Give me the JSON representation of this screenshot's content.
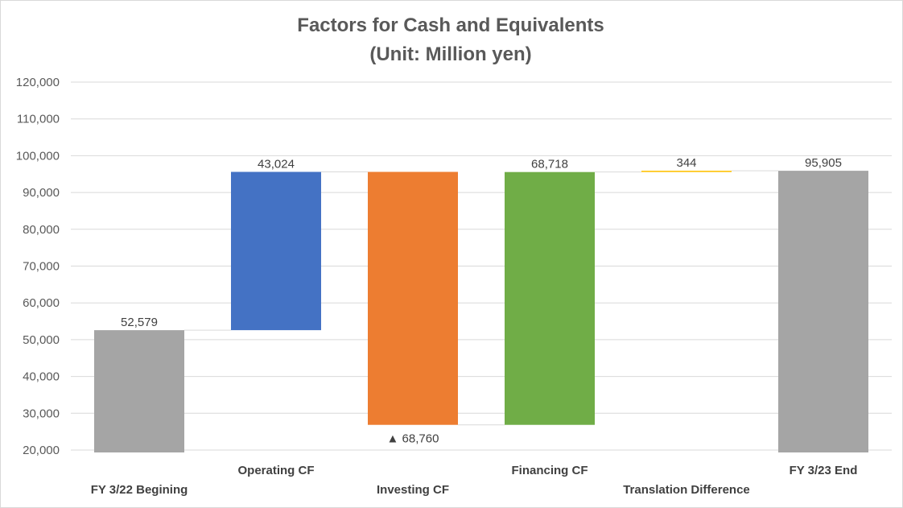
{
  "chart_data": {
    "type": "bar",
    "subtype": "waterfall",
    "title": "Factors for Cash and Equivalents",
    "subtitle": "(Unit: Million yen)",
    "ylim": [
      20000,
      120000
    ],
    "ytick_step": 10000,
    "yticks": [
      "20,000",
      "30,000",
      "40,000",
      "50,000",
      "60,000",
      "70,000",
      "80,000",
      "90,000",
      "100,000",
      "110,000",
      "120,000"
    ],
    "grid": true,
    "legend": "none",
    "categories": [
      "FY 3/22 Begining",
      "Operating CF",
      "Investing CF",
      "Financing CF",
      "Translation Difference",
      "FY 3/23 End"
    ],
    "bars": [
      {
        "category": "FY 3/22 Begining",
        "kind": "total",
        "start": 0,
        "end": 52579,
        "label": "52,579",
        "color": "#a5a5a5"
      },
      {
        "category": "Operating CF",
        "kind": "increase",
        "start": 52579,
        "end": 95603,
        "label": "43,024",
        "color": "#4472c4"
      },
      {
        "category": "Investing CF",
        "kind": "decrease",
        "start": 95603,
        "end": 26843,
        "label": "▲ 68,760",
        "color": "#ed7d31"
      },
      {
        "category": "Financing CF",
        "kind": "increase",
        "start": 26843,
        "end": 95561,
        "label": "68,718",
        "color": "#70ad47"
      },
      {
        "category": "Translation Difference",
        "kind": "increase",
        "start": 95561,
        "end": 95905,
        "label": "344",
        "color": "#ffc000"
      },
      {
        "category": "FY 3/23 End",
        "kind": "total",
        "start": 0,
        "end": 95905,
        "label": "95,905",
        "color": "#a5a5a5"
      }
    ],
    "colors": {
      "grid": "#d9d9d9",
      "connector": "#d9d9d9",
      "axis_text": "#595959",
      "label_text": "#404040"
    }
  }
}
